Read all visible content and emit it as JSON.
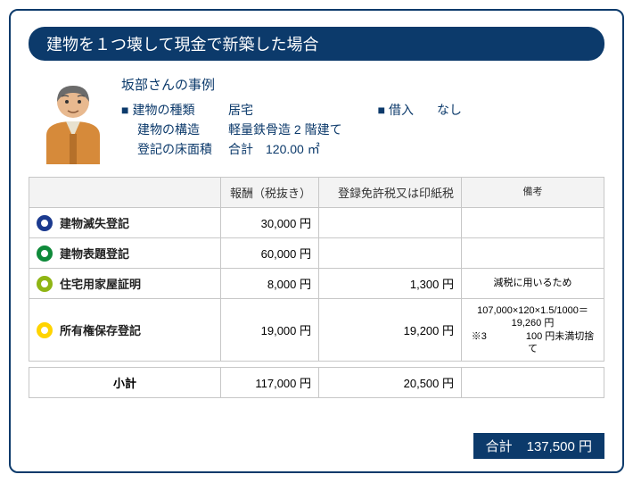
{
  "title": "建物を１つ壊して現金で新築した場合",
  "case": {
    "title": "坂部さんの事例",
    "details": {
      "type_label": "建物の種類",
      "type_value": "居宅",
      "structure_label": "建物の構造",
      "structure_value": "軽量鉄骨造 2 階建て",
      "area_label": "登記の床面積",
      "area_value": "合計　120.00 ㎡",
      "loan_label": "借入",
      "loan_value": "なし"
    }
  },
  "table": {
    "headers": {
      "name": "",
      "fee": "報酬（税抜き）",
      "tax": "登録免許税又は印紙税",
      "note": "備考"
    },
    "rows": [
      {
        "ring_color": "#1b3a8f",
        "name": "建物滅失登記",
        "fee": "30,000 円",
        "tax": "",
        "note": ""
      },
      {
        "ring_color": "#0f8a3a",
        "name": "建物表題登記",
        "fee": "60,000 円",
        "tax": "",
        "note": ""
      },
      {
        "ring_color": "#8fb514",
        "name": "住宅用家屋証明",
        "fee": "8,000 円",
        "tax": "1,300 円",
        "note": "減税に用いるため"
      },
      {
        "ring_color": "#ffd400",
        "name": "所有権保存登記",
        "fee": "19,000 円",
        "tax": "19,200 円",
        "note": "107,000×120×1.5/1000＝19,260 円\n※3　　　　100 円未満切捨て"
      }
    ],
    "subtotal": {
      "label": "小計",
      "fee": "117,000 円",
      "tax": "20,500 円"
    }
  },
  "total": {
    "label": "合計",
    "value": "137,500 円"
  },
  "avatar": {
    "jacket": "#d68a3a",
    "shirt": "#e8e2d0",
    "skin": "#e8b98f",
    "hair": "#6b6b6b"
  }
}
